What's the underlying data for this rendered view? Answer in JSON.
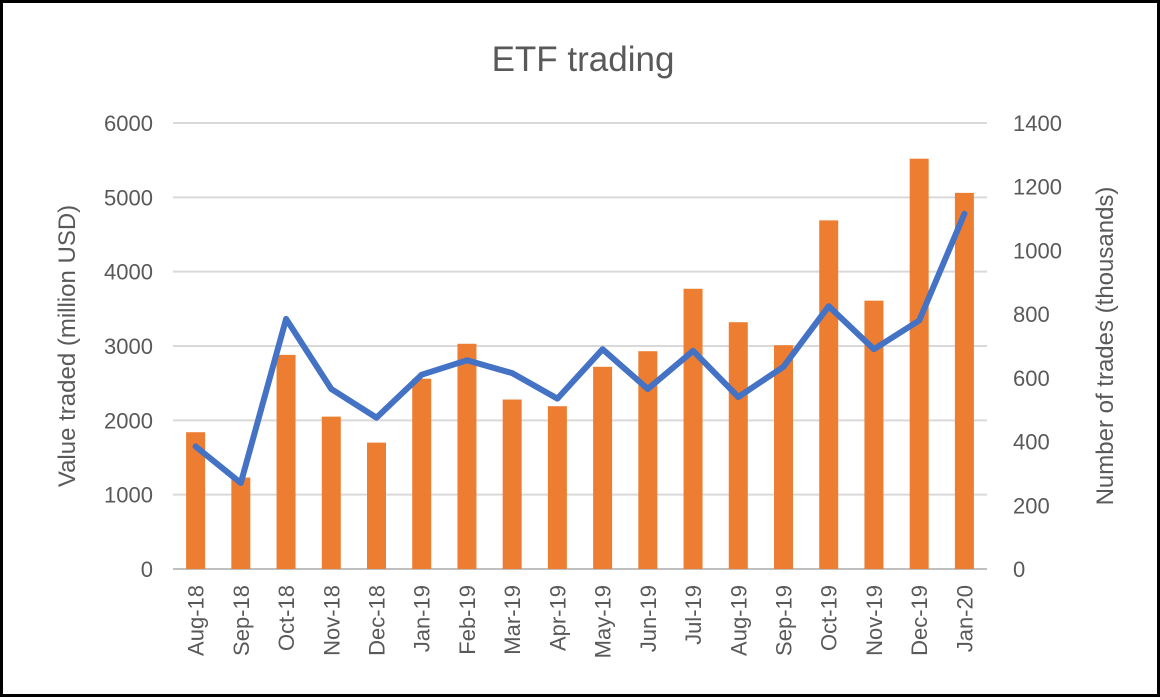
{
  "chart_data": {
    "type": "bar",
    "title": "ETF trading",
    "categories": [
      "Aug-18",
      "Sep-18",
      "Oct-18",
      "Nov-18",
      "Dec-18",
      "Jan-19",
      "Feb-19",
      "Mar-19",
      "Apr-19",
      "May-19",
      "Jun-19",
      "Jul-19",
      "Aug-19",
      "Sep-19",
      "Oct-19",
      "Nov-19",
      "Dec-19",
      "Jan-20"
    ],
    "ylabel": "Value traded (million USD)",
    "ylabel_right": "Number of trades (thousands)",
    "ylim": [
      0,
      6000
    ],
    "y_ticks": [
      "0",
      "1000",
      "2000",
      "3000",
      "4000",
      "5000",
      "6000"
    ],
    "ylim_right": [
      0,
      1400
    ],
    "y_ticks_right": [
      "0",
      "200",
      "400",
      "600",
      "800",
      "1000",
      "1200",
      "1400"
    ],
    "grid": true,
    "legend": "none",
    "series": [
      {
        "type": "bar",
        "axis": "left",
        "color": "#ED7D31",
        "values": [
          1840,
          1230,
          2880,
          2050,
          1700,
          2560,
          3030,
          2280,
          2190,
          2720,
          2930,
          3770,
          3320,
          3010,
          4690,
          3610,
          5520,
          5060
        ]
      },
      {
        "type": "line",
        "axis": "right",
        "color": "#4472C4",
        "values": [
          385,
          270,
          785,
          565,
          475,
          610,
          655,
          615,
          535,
          690,
          565,
          685,
          540,
          635,
          825,
          690,
          780,
          1115
        ]
      }
    ]
  }
}
